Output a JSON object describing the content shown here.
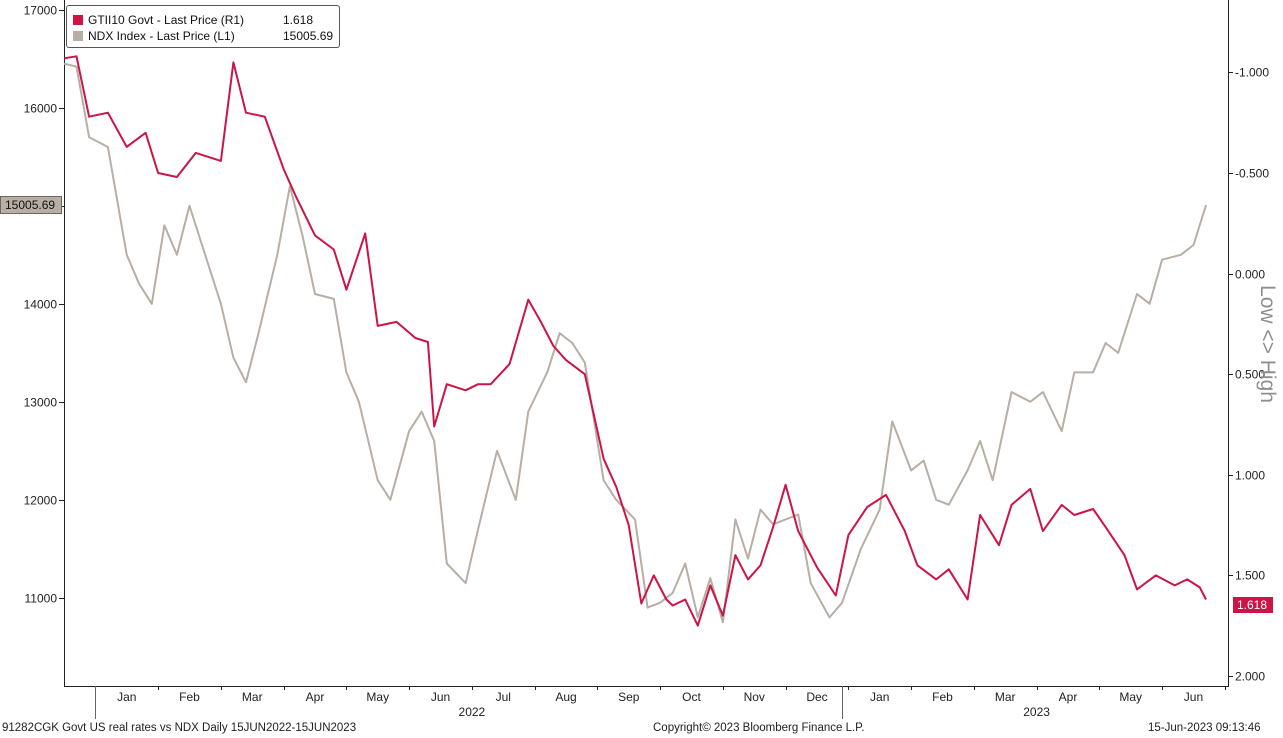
{
  "legend": {
    "items": [
      {
        "label": "GTII10 Govt - Last Price (R1)",
        "value": "1.618",
        "color": "#cc1447"
      },
      {
        "label": "NDX Index - Last Price (L1)",
        "value": "15005.69",
        "color": "#b8aea3"
      }
    ]
  },
  "tags": {
    "left_value": "15005.69",
    "right_value": "1.618"
  },
  "right_axis_title": "Low <> High",
  "footer": {
    "left": "91282CGK Govt US real rates vs NDX  Daily 15JUN2022-15JUN2023",
    "center": "Copyright© 2023 Bloomberg Finance L.P.",
    "right": "15-Jun-2023 09:13:46"
  },
  "colors": {
    "real_rate": "#cc1447",
    "ndx": "#b8aea3",
    "axis": "#222222"
  },
  "chart_data": {
    "type": "line",
    "title": "",
    "x_ticks": [
      "Jan",
      "Feb",
      "Mar",
      "Apr",
      "May",
      "Jun",
      "Jul",
      "Aug",
      "Sep",
      "Oct",
      "Nov",
      "Dec",
      "Jan",
      "Feb",
      "Mar",
      "Apr",
      "May",
      "Jun"
    ],
    "x_tick_pos": [
      0.5,
      1.5,
      2.5,
      3.5,
      4.5,
      5.5,
      6.5,
      7.5,
      8.5,
      9.5,
      10.5,
      11.5,
      12.5,
      13.5,
      14.5,
      15.5,
      16.5,
      17.5
    ],
    "x_separators": [
      0.0,
      11.9
    ],
    "x_years": [
      {
        "label": "2022",
        "pos": 6.0
      },
      {
        "label": "2023",
        "pos": 15.0
      }
    ],
    "xlim": [
      -0.5,
      18.05
    ],
    "left_axis": {
      "series": "NDX Index",
      "ticks": [
        11000,
        12000,
        13000,
        14000,
        15000,
        16000,
        17000
      ],
      "ylim": [
        10100,
        17100
      ]
    },
    "right_axis": {
      "series": "GTII10 Govt",
      "inverted": true,
      "ticks": [
        "-1.000",
        "-0.500",
        "0.000",
        "0.500",
        "1.000",
        "1.500",
        "2.000"
      ],
      "tick_values": [
        -1.0,
        -0.5,
        0.0,
        0.5,
        1.0,
        1.5,
        2.0
      ],
      "ylim": [
        -1.36,
        2.05
      ]
    },
    "series": [
      {
        "name": "GTII10 Govt - Last Price (R1)",
        "axis": "right",
        "x": [
          -0.5,
          -0.3,
          -0.1,
          0.2,
          0.5,
          0.8,
          1.0,
          1.3,
          1.6,
          2.0,
          2.2,
          2.4,
          2.7,
          3.0,
          3.2,
          3.5,
          3.8,
          4.0,
          4.3,
          4.5,
          4.8,
          5.1,
          5.3,
          5.4,
          5.6,
          5.9,
          6.1,
          6.3,
          6.6,
          6.9,
          7.1,
          7.3,
          7.5,
          7.8,
          8.1,
          8.3,
          8.5,
          8.7,
          8.9,
          9.1,
          9.2,
          9.4,
          9.6,
          9.8,
          10.0,
          10.2,
          10.4,
          10.6,
          10.8,
          11.0,
          11.2,
          11.5,
          11.8,
          12.0,
          12.3,
          12.6,
          12.9,
          13.1,
          13.4,
          13.6,
          13.9,
          14.1,
          14.4,
          14.6,
          14.9,
          15.1,
          15.4,
          15.6,
          15.9,
          16.1,
          16.4,
          16.6,
          16.9,
          17.2,
          17.4,
          17.6,
          17.7
        ],
        "y": [
          -1.07,
          -1.08,
          -0.78,
          -0.8,
          -0.63,
          -0.7,
          -0.5,
          -0.48,
          -0.6,
          -0.56,
          -1.05,
          -0.8,
          -0.78,
          -0.52,
          -0.38,
          -0.19,
          -0.12,
          0.08,
          -0.2,
          0.26,
          0.24,
          0.32,
          0.34,
          0.76,
          0.55,
          0.58,
          0.55,
          0.55,
          0.45,
          0.13,
          0.24,
          0.36,
          0.43,
          0.5,
          0.92,
          1.06,
          1.25,
          1.64,
          1.5,
          1.62,
          1.65,
          1.62,
          1.75,
          1.55,
          1.7,
          1.4,
          1.52,
          1.45,
          1.26,
          1.05,
          1.28,
          1.46,
          1.6,
          1.3,
          1.16,
          1.1,
          1.28,
          1.45,
          1.52,
          1.47,
          1.62,
          1.2,
          1.35,
          1.15,
          1.07,
          1.28,
          1.15,
          1.2,
          1.17,
          1.26,
          1.4,
          1.57,
          1.5,
          1.55,
          1.52,
          1.56,
          1.62
        ]
      },
      {
        "name": "NDX Index - Last Price (L1)",
        "axis": "left",
        "x": [
          -0.5,
          -0.3,
          -0.1,
          0.2,
          0.5,
          0.7,
          0.9,
          1.1,
          1.3,
          1.5,
          1.7,
          2.0,
          2.2,
          2.4,
          2.6,
          2.9,
          3.1,
          3.3,
          3.5,
          3.8,
          4.0,
          4.2,
          4.5,
          4.7,
          5.0,
          5.2,
          5.4,
          5.6,
          5.9,
          6.1,
          6.4,
          6.7,
          6.9,
          7.2,
          7.4,
          7.6,
          7.8,
          8.1,
          8.3,
          8.6,
          8.8,
          9.0,
          9.2,
          9.4,
          9.6,
          9.8,
          10.0,
          10.2,
          10.4,
          10.6,
          10.8,
          11.0,
          11.2,
          11.4,
          11.7,
          11.9,
          12.2,
          12.5,
          12.7,
          13.0,
          13.2,
          13.4,
          13.6,
          13.9,
          14.1,
          14.3,
          14.6,
          14.9,
          15.1,
          15.4,
          15.6,
          15.9,
          16.1,
          16.3,
          16.6,
          16.8,
          17.0,
          17.3,
          17.5,
          17.7
        ],
        "y": [
          16450,
          16420,
          15700,
          15600,
          14500,
          14200,
          14000,
          14800,
          14500,
          15000,
          14600,
          14000,
          13450,
          13200,
          13700,
          14500,
          15200,
          14700,
          14100,
          14050,
          13300,
          13000,
          12200,
          12000,
          12700,
          12900,
          12600,
          11350,
          11150,
          11700,
          12500,
          12000,
          12900,
          13300,
          13700,
          13600,
          13400,
          12200,
          12000,
          11800,
          10900,
          10950,
          11050,
          11350,
          10800,
          11200,
          10750,
          11800,
          11400,
          11900,
          11750,
          11800,
          11850,
          11150,
          10800,
          10950,
          11500,
          11900,
          12800,
          12300,
          12400,
          12000,
          11950,
          12300,
          12600,
          12200,
          13100,
          13000,
          13100,
          12700,
          13300,
          13300,
          13600,
          13500,
          14100,
          14000,
          14450,
          14500,
          14600,
          15006
        ]
      }
    ]
  }
}
